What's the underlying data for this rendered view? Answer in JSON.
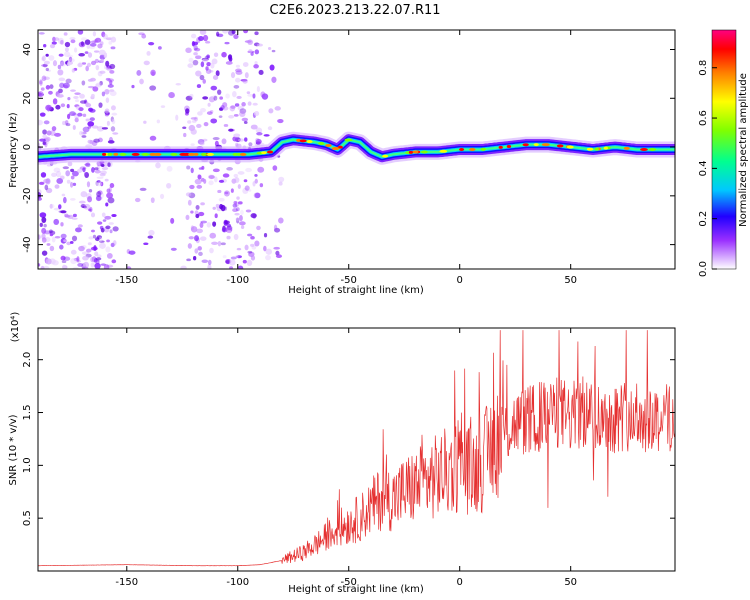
{
  "title": "C2E6.2023.213.22.07.R11",
  "chart_data": [
    {
      "type": "heatmap",
      "xlabel": "Height of straight line (km)",
      "ylabel": "Frequency (Hz)",
      "xlim": [
        -190,
        97
      ],
      "ylim": [
        -50,
        48
      ],
      "xticks": [
        "-150",
        "-100",
        "-50",
        "0",
        "50"
      ],
      "yticks": [
        "-40",
        "-20",
        "0",
        "20",
        "40"
      ],
      "colorbar": {
        "label": "Normalized spectral amplitude",
        "range": [
          0,
          0.95
        ],
        "ticks": [
          "0.0",
          "0.2",
          "0.4",
          "0.6",
          "0.8"
        ],
        "colors": [
          "#ffffff",
          "#8000ff",
          "#0000ff",
          "#00c8ff",
          "#00ff80",
          "#80ff00",
          "#ffff00",
          "#ff8000",
          "#ff0000",
          "#ff0080"
        ]
      },
      "ridge": {
        "x": [
          -190,
          -175,
          -160,
          -155,
          -130,
          -110,
          -95,
          -85,
          -80,
          -75,
          -65,
          -60,
          -55,
          -50,
          -45,
          -40,
          -35,
          -30,
          -20,
          -10,
          0,
          10,
          20,
          30,
          40,
          50,
          60,
          70,
          80,
          90,
          97
        ],
        "y": [
          -4,
          -3,
          -3,
          -3,
          -3,
          -3,
          -3,
          -2,
          2,
          3,
          2,
          1,
          -1,
          3,
          2,
          -2,
          -4,
          -3,
          -2,
          -2,
          -1,
          -1,
          0,
          1,
          1,
          0,
          -1,
          0,
          -1,
          -1,
          -1
        ]
      }
    },
    {
      "type": "line",
      "xlabel": "Height of straight line (km)",
      "ylabel": "SNR (10 * v/v)",
      "yscale_label": "(x10⁴)",
      "xlim": [
        -190,
        97
      ],
      "ylim": [
        0,
        2.3
      ],
      "xticks": [
        "-150",
        "-100",
        "-50",
        "0",
        "50"
      ],
      "yticks": [
        "0.5",
        "1.0",
        "1.5",
        "2.0"
      ],
      "color": "#e53030",
      "envelope": {
        "x": [
          -190,
          -150,
          -120,
          -100,
          -90,
          -85,
          -80,
          -75,
          -70,
          -65,
          -60,
          -55,
          -50,
          -45,
          -40,
          -35,
          -30,
          -25,
          -20,
          -15,
          -10,
          -5,
          0,
          5,
          10,
          15,
          20,
          25,
          30,
          35,
          40,
          45,
          50,
          55,
          60,
          65,
          70,
          75,
          80,
          85,
          90,
          97
        ],
        "y": [
          0.05,
          0.06,
          0.05,
          0.05,
          0.06,
          0.08,
          0.1,
          0.14,
          0.18,
          0.25,
          0.32,
          0.4,
          0.45,
          0.5,
          0.6,
          0.7,
          0.68,
          0.75,
          0.8,
          0.85,
          0.9,
          0.95,
          1.0,
          0.95,
          1.0,
          1.2,
          1.3,
          1.4,
          1.42,
          1.45,
          1.48,
          1.5,
          1.45,
          1.5,
          1.48,
          1.45,
          1.45,
          1.48,
          1.45,
          1.45,
          1.45,
          1.45
        ]
      }
    }
  ]
}
